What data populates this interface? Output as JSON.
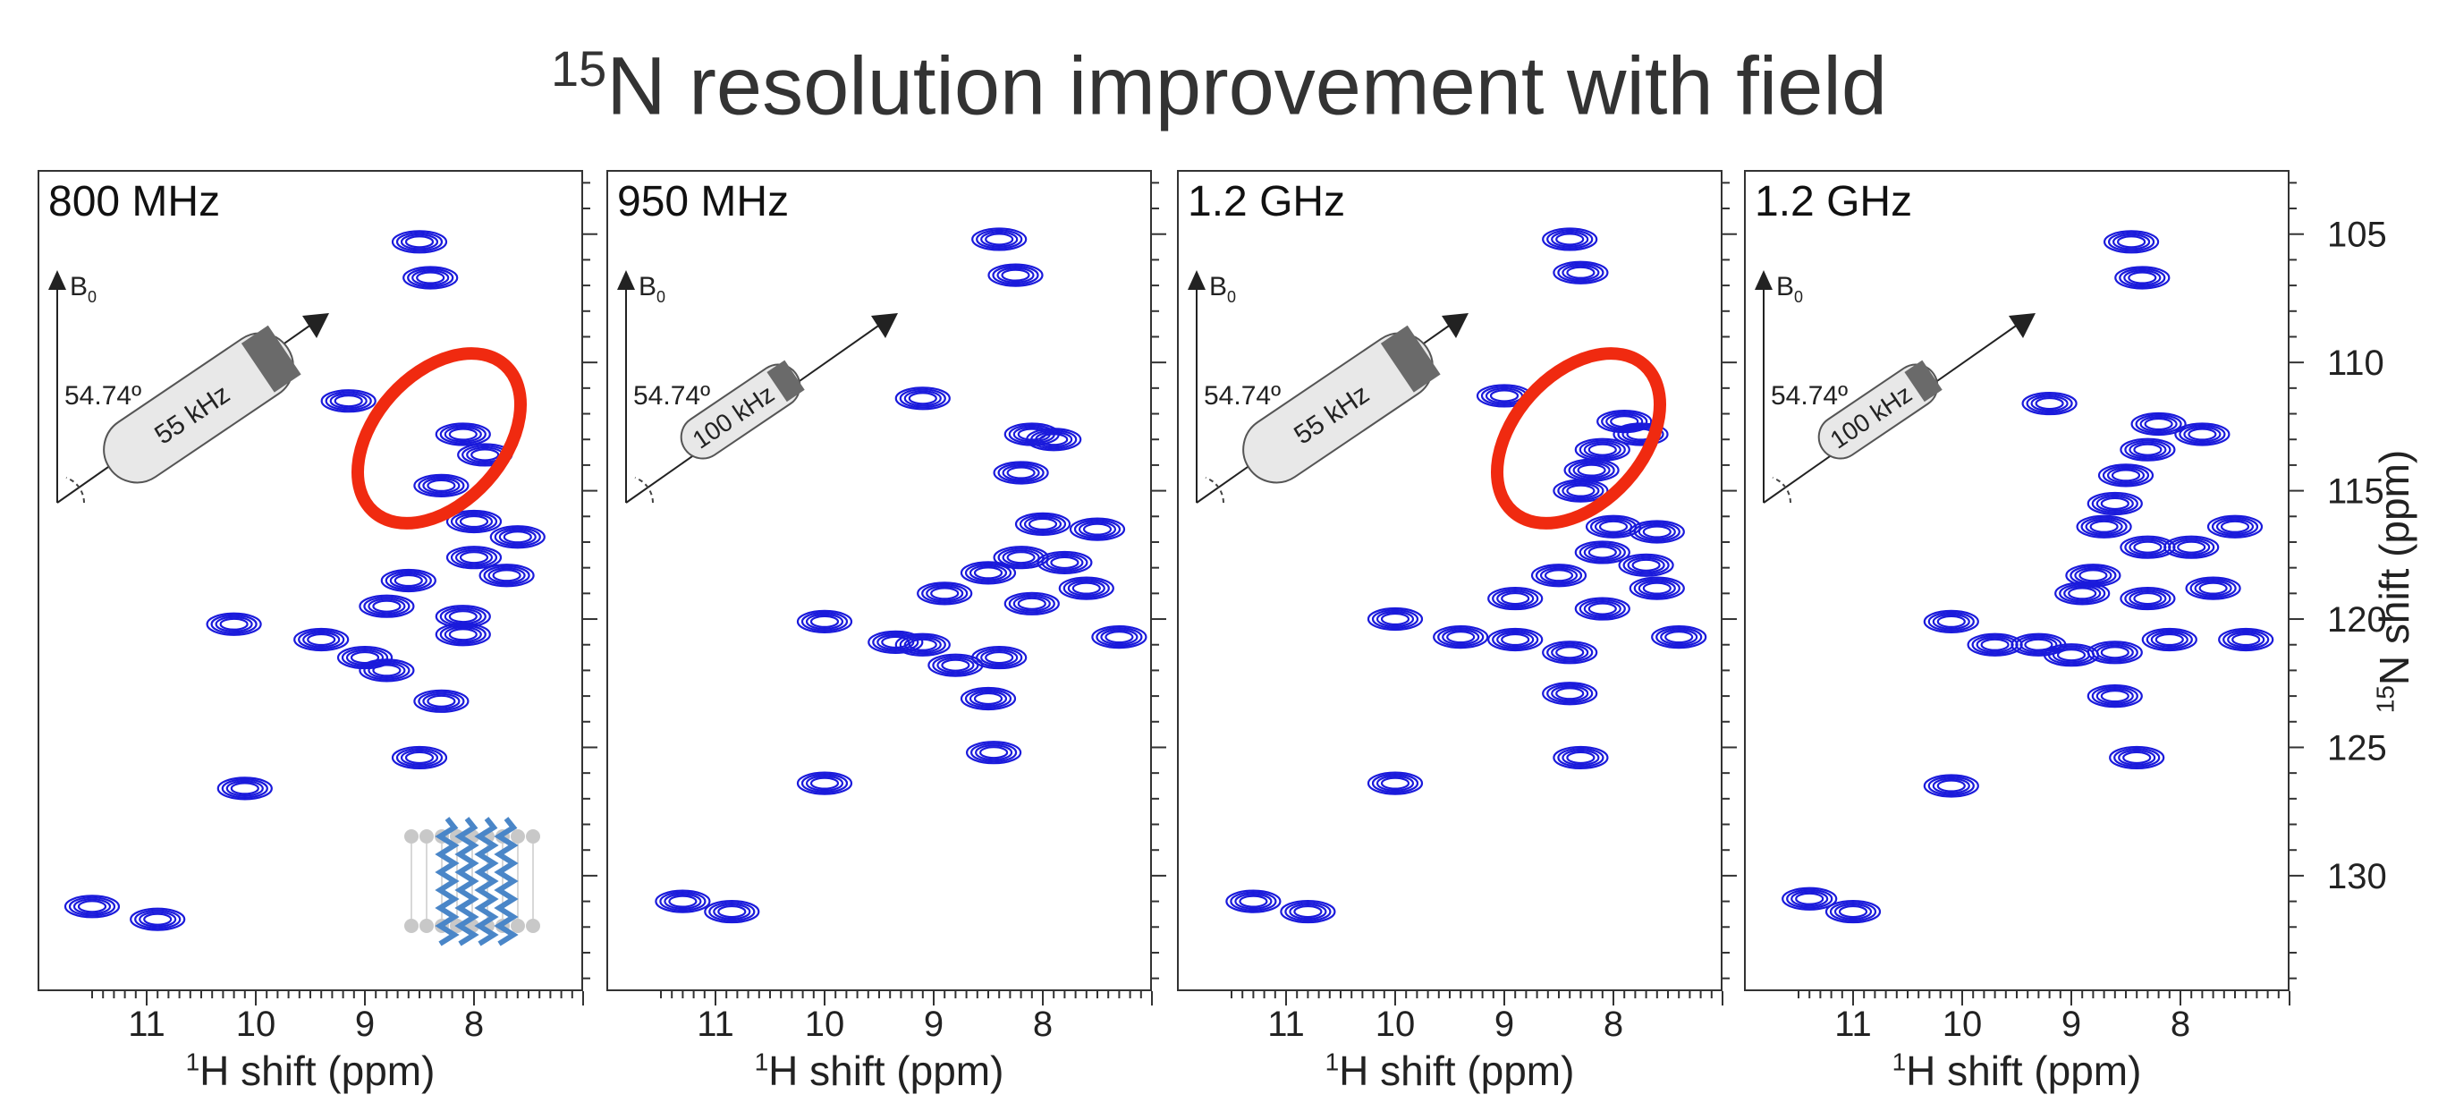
{
  "title": {
    "sup": "15",
    "main": "N resolution improvement with field"
  },
  "chart_data": [
    {
      "type": "scatter",
      "panel": "800 MHz",
      "mas_rate": "55 kHz",
      "angle": "54.74º",
      "b0": "B0",
      "highlight": true,
      "protein_image": true,
      "xlabel": "1H shift (ppm)",
      "ylabel": "",
      "xlim": [
        12.0,
        7.0
      ],
      "ylim": [
        134.5,
        102.5
      ],
      "x_ticks": [
        11,
        10,
        9,
        8
      ],
      "peaks": [
        [
          8.5,
          105.3
        ],
        [
          8.4,
          106.7
        ],
        [
          9.15,
          111.5
        ],
        [
          8.1,
          112.8
        ],
        [
          7.9,
          113.6
        ],
        [
          8.3,
          114.8
        ],
        [
          8.0,
          116.2
        ],
        [
          7.6,
          116.8
        ],
        [
          8.0,
          117.6
        ],
        [
          7.7,
          118.3
        ],
        [
          8.6,
          118.5
        ],
        [
          8.8,
          119.5
        ],
        [
          8.1,
          119.9
        ],
        [
          10.2,
          120.2
        ],
        [
          9.4,
          120.8
        ],
        [
          9.0,
          121.5
        ],
        [
          8.1,
          120.6
        ],
        [
          8.8,
          122.0
        ],
        [
          8.3,
          123.2
        ],
        [
          8.5,
          125.4
        ],
        [
          10.1,
          126.6
        ],
        [
          11.5,
          131.2
        ],
        [
          10.9,
          131.7
        ]
      ]
    },
    {
      "type": "scatter",
      "panel": "950 MHz",
      "mas_rate": "100 kHz",
      "angle": "54.74º",
      "b0": "B0",
      "highlight": false,
      "protein_image": false,
      "xlabel": "1H shift (ppm)",
      "ylabel": "",
      "xlim": [
        12.0,
        7.0
      ],
      "ylim": [
        134.5,
        102.5
      ],
      "x_ticks": [
        11,
        10,
        9,
        8
      ],
      "peaks": [
        [
          8.4,
          105.2
        ],
        [
          8.25,
          106.6
        ],
        [
          9.1,
          111.4
        ],
        [
          8.1,
          112.8
        ],
        [
          7.9,
          113.0
        ],
        [
          8.2,
          114.3
        ],
        [
          8.0,
          116.3
        ],
        [
          7.5,
          116.5
        ],
        [
          8.2,
          117.6
        ],
        [
          7.8,
          117.8
        ],
        [
          8.5,
          118.2
        ],
        [
          8.9,
          119.0
        ],
        [
          8.1,
          119.4
        ],
        [
          7.6,
          118.8
        ],
        [
          10.0,
          120.1
        ],
        [
          9.35,
          120.9
        ],
        [
          9.1,
          121.0
        ],
        [
          8.8,
          121.8
        ],
        [
          8.4,
          121.5
        ],
        [
          7.3,
          120.7
        ],
        [
          8.5,
          123.1
        ],
        [
          8.45,
          125.2
        ],
        [
          10.0,
          126.4
        ],
        [
          11.3,
          131.0
        ],
        [
          10.85,
          131.4
        ]
      ]
    },
    {
      "type": "scatter",
      "panel": "1.2 GHz",
      "mas_rate": "55 kHz",
      "angle": "54.74º",
      "b0": "B0",
      "highlight": true,
      "protein_image": false,
      "xlabel": "1H shift (ppm)",
      "ylabel": "",
      "xlim": [
        12.0,
        7.0
      ],
      "ylim": [
        134.5,
        102.5
      ],
      "x_ticks": [
        11,
        10,
        9,
        8
      ],
      "peaks": [
        [
          8.4,
          105.2
        ],
        [
          8.3,
          106.5
        ],
        [
          9.0,
          111.3
        ],
        [
          7.9,
          112.3
        ],
        [
          7.75,
          112.8
        ],
        [
          8.1,
          113.4
        ],
        [
          8.2,
          114.2
        ],
        [
          8.3,
          115.0
        ],
        [
          8.0,
          116.4
        ],
        [
          7.6,
          116.6
        ],
        [
          8.1,
          117.4
        ],
        [
          7.7,
          117.9
        ],
        [
          8.5,
          118.3
        ],
        [
          8.9,
          119.2
        ],
        [
          8.1,
          119.6
        ],
        [
          7.6,
          118.8
        ],
        [
          10.0,
          120.0
        ],
        [
          9.4,
          120.7
        ],
        [
          8.9,
          120.8
        ],
        [
          8.4,
          121.3
        ],
        [
          7.4,
          120.7
        ],
        [
          8.4,
          122.9
        ],
        [
          8.3,
          125.4
        ],
        [
          10.0,
          126.4
        ],
        [
          11.3,
          131.0
        ],
        [
          10.8,
          131.4
        ]
      ]
    },
    {
      "type": "scatter",
      "panel": "1.2 GHz",
      "mas_rate": "100 kHz",
      "angle": "54.74º",
      "b0": "B0",
      "highlight": false,
      "protein_image": false,
      "xlabel": "1H shift (ppm)",
      "ylabel": "15N shift (ppm)",
      "xlim": [
        12.0,
        7.0
      ],
      "ylim": [
        134.5,
        102.5
      ],
      "y_ticks": [
        105,
        110,
        115,
        120,
        125,
        130
      ],
      "x_ticks": [
        11,
        10,
        9,
        8
      ],
      "peaks": [
        [
          8.45,
          105.3
        ],
        [
          8.35,
          106.7
        ],
        [
          9.2,
          111.6
        ],
        [
          8.2,
          112.4
        ],
        [
          7.8,
          112.8
        ],
        [
          8.3,
          113.4
        ],
        [
          8.5,
          114.4
        ],
        [
          8.6,
          115.5
        ],
        [
          8.7,
          116.4
        ],
        [
          7.5,
          116.4
        ],
        [
          8.3,
          117.2
        ],
        [
          7.9,
          117.2
        ],
        [
          8.8,
          118.3
        ],
        [
          8.9,
          119.0
        ],
        [
          8.3,
          119.2
        ],
        [
          7.7,
          118.8
        ],
        [
          10.1,
          120.1
        ],
        [
          9.7,
          121.0
        ],
        [
          9.3,
          121.0
        ],
        [
          9.0,
          121.4
        ],
        [
          8.6,
          121.3
        ],
        [
          8.1,
          120.8
        ],
        [
          7.4,
          120.8
        ],
        [
          8.6,
          123.0
        ],
        [
          8.4,
          125.4
        ],
        [
          10.1,
          126.5
        ],
        [
          11.4,
          130.9
        ],
        [
          11.0,
          131.4
        ]
      ]
    }
  ],
  "colors": {
    "contour": "#1a1adb",
    "highlight": "#f02a10",
    "axis": "#333333",
    "text": "#222222"
  }
}
